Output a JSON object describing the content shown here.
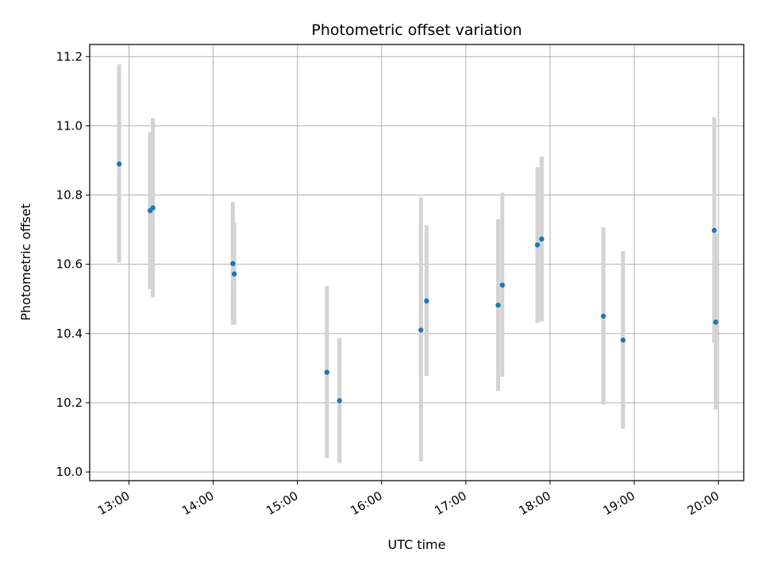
{
  "chart_data": {
    "type": "scatter",
    "title": "Photometric offset variation",
    "xlabel": "UTC time",
    "ylabel": "Photometric offset",
    "x_axis_kind": "time",
    "xlim": [
      "12:32",
      "20:18"
    ],
    "ylim": [
      9.975,
      11.235
    ],
    "x_ticks": [
      "13:00",
      "14:00",
      "15:00",
      "16:00",
      "17:00",
      "18:00",
      "19:00",
      "20:00"
    ],
    "y_ticks": [
      10.0,
      10.2,
      10.4,
      10.6,
      10.8,
      11.0,
      11.2
    ],
    "y_tick_labels": [
      "10.0",
      "10.2",
      "10.4",
      "10.6",
      "10.8",
      "11.0",
      "11.2"
    ],
    "grid": true,
    "colors": {
      "point": "#1f77b4",
      "errorbar": "#d3d3d3",
      "grid": "#b0b0b0"
    },
    "points": [
      {
        "x": "12:53",
        "y": 10.89,
        "err_low": 10.605,
        "err_high": 11.178
      },
      {
        "x": "13:15",
        "y": 10.755,
        "err_low": 10.528,
        "err_high": 10.982
      },
      {
        "x": "13:17",
        "y": 10.763,
        "err_low": 10.505,
        "err_high": 11.022
      },
      {
        "x": "14:14",
        "y": 10.602,
        "err_low": 10.425,
        "err_high": 10.78
      },
      {
        "x": "14:15",
        "y": 10.572,
        "err_low": 10.425,
        "err_high": 10.72
      },
      {
        "x": "15:21",
        "y": 10.288,
        "err_low": 10.04,
        "err_high": 10.537
      },
      {
        "x": "15:30",
        "y": 10.206,
        "err_low": 10.026,
        "err_high": 10.387
      },
      {
        "x": "16:28",
        "y": 10.41,
        "err_low": 10.03,
        "err_high": 10.793
      },
      {
        "x": "16:32",
        "y": 10.494,
        "err_low": 10.278,
        "err_high": 10.713
      },
      {
        "x": "17:23",
        "y": 10.482,
        "err_low": 10.234,
        "err_high": 10.731
      },
      {
        "x": "17:26",
        "y": 10.54,
        "err_low": 10.275,
        "err_high": 10.807
      },
      {
        "x": "17:51",
        "y": 10.656,
        "err_low": 10.431,
        "err_high": 10.881
      },
      {
        "x": "17:54",
        "y": 10.673,
        "err_low": 10.435,
        "err_high": 10.912
      },
      {
        "x": "18:38",
        "y": 10.45,
        "err_low": 10.195,
        "err_high": 10.707
      },
      {
        "x": "18:52",
        "y": 10.381,
        "err_low": 10.125,
        "err_high": 10.638
      },
      {
        "x": "19:57",
        "y": 10.698,
        "err_low": 10.372,
        "err_high": 11.025
      },
      {
        "x": "19:58",
        "y": 10.433,
        "err_low": 10.18,
        "err_high": 10.688
      }
    ]
  }
}
